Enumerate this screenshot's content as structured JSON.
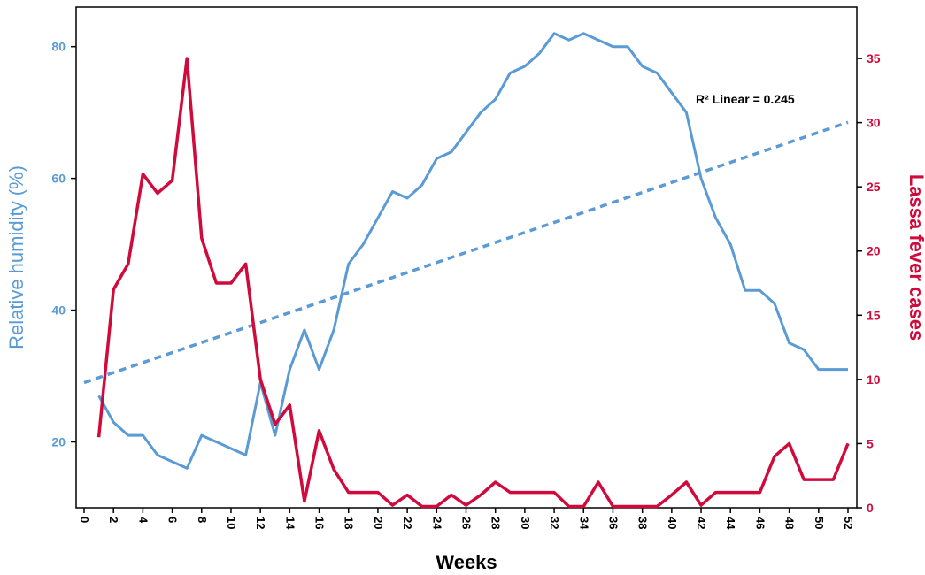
{
  "chart_data": {
    "type": "line",
    "title": "",
    "xlabel": "Weeks",
    "ylabel_left": "Relative humidity (%)",
    "ylabel_right": "Lassa fever cases",
    "xlim": [
      0,
      52
    ],
    "ylim_left": [
      10,
      86
    ],
    "ylim_right": [
      0,
      39
    ],
    "x_ticks": [
      0,
      2,
      4,
      6,
      8,
      10,
      12,
      14,
      16,
      18,
      20,
      22,
      24,
      26,
      28,
      30,
      32,
      34,
      36,
      38,
      40,
      42,
      44,
      46,
      48,
      50,
      52
    ],
    "y_left_ticks": [
      20,
      40,
      60,
      80
    ],
    "y_right_ticks": [
      0,
      5,
      10,
      15,
      20,
      25,
      30,
      35
    ],
    "grid": false,
    "colors": {
      "humidity": "#5b9bd5",
      "cases": "#d10a3c",
      "trend": "#5b9bd5"
    },
    "series": [
      {
        "axis": "left",
        "x": [
          1,
          2,
          3,
          4,
          5,
          6,
          7,
          8,
          9,
          10,
          11,
          12,
          13,
          14,
          15,
          16,
          17,
          18,
          19,
          20,
          21,
          22,
          23,
          24,
          25,
          26,
          27,
          28,
          29,
          30,
          31,
          32,
          33,
          34,
          35,
          36,
          37,
          38,
          39,
          40,
          41,
          42,
          43,
          44,
          45,
          46,
          47,
          48,
          49,
          50,
          51,
          52
        ],
        "values": [
          27,
          23,
          21,
          21,
          18,
          17,
          16,
          21,
          20,
          19,
          18,
          29,
          21,
          31,
          37,
          31,
          37,
          47,
          50,
          54,
          58,
          57,
          59,
          63,
          64,
          67,
          70,
          72,
          76,
          77,
          79,
          82,
          81,
          82,
          81,
          80,
          80,
          77,
          76,
          73,
          70,
          60,
          54,
          50,
          43,
          43,
          41,
          35,
          34,
          31,
          31,
          31
        ]
      },
      {
        "axis": "right",
        "x": [
          1,
          2,
          3,
          4,
          5,
          6,
          7,
          8,
          9,
          10,
          11,
          12,
          13,
          14,
          15,
          16,
          17,
          18,
          19,
          20,
          21,
          22,
          23,
          24,
          25,
          26,
          27,
          28,
          29,
          30,
          31,
          32,
          33,
          34,
          35,
          36,
          37,
          38,
          39,
          40,
          41,
          42,
          43,
          44,
          45,
          46,
          47,
          48,
          49,
          50,
          51,
          52
        ],
        "values": [
          5.5,
          17,
          19,
          26,
          24.5,
          25.5,
          35,
          21,
          17.5,
          17.5,
          19,
          10,
          6.5,
          8,
          0.5,
          6,
          3,
          1.2,
          1.2,
          1.2,
          0.2,
          1,
          0.1,
          0.1,
          1,
          0.2,
          1,
          2,
          1.2,
          1.2,
          1.2,
          1.2,
          0.1,
          0.1,
          2,
          0.1,
          0.1,
          0.1,
          0.1,
          1,
          2,
          0.2,
          1.2,
          1.2,
          1.2,
          1.2,
          4,
          5,
          2.2,
          2.2,
          2.2,
          5
        ]
      }
    ],
    "trendline": {
      "axis": "left",
      "x": [
        0,
        52
      ],
      "values": [
        29,
        68.5
      ]
    },
    "annotation": "R² Linear = 0.245"
  }
}
